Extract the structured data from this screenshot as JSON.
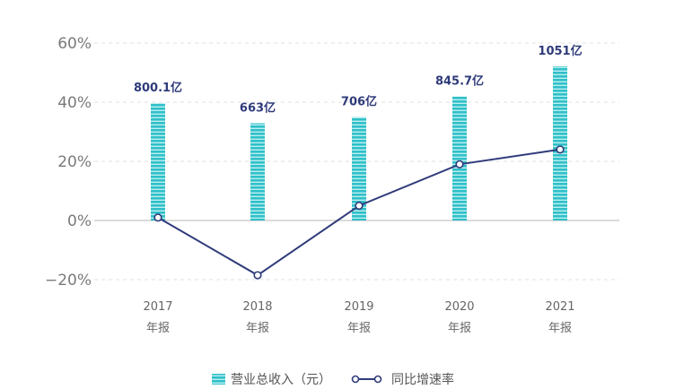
{
  "chart_data": {
    "type": "bar+line",
    "title": "",
    "categories": [
      {
        "year": "2017",
        "period": "年报"
      },
      {
        "year": "2018",
        "period": "年报"
      },
      {
        "year": "2019",
        "period": "年报"
      },
      {
        "year": "2020",
        "period": "年报"
      },
      {
        "year": "2021",
        "period": "年报"
      }
    ],
    "series": [
      {
        "name": "营业总收入（元）",
        "type": "bar",
        "values_yi": [
          800.1,
          663,
          706,
          845.7,
          1051
        ],
        "labels": [
          "800.1亿",
          "663亿",
          "706亿",
          "845.7亿",
          "1051亿"
        ],
        "color": "#3cc4cc"
      },
      {
        "name": "同比增速率",
        "type": "line",
        "values_pct": [
          1,
          -18.5,
          5,
          19,
          24
        ],
        "color": "#2f3b7a"
      }
    ],
    "y_axis": {
      "ticks": [
        60,
        40,
        20,
        0,
        -20
      ],
      "tick_labels": [
        "60%",
        "40%",
        "20%",
        "0%",
        "−20%"
      ],
      "range": [
        -20,
        60
      ],
      "grid": "dashed"
    },
    "legend": {
      "placement": "bottom-center",
      "items": [
        "营业总收入（元）",
        "同比增速率"
      ]
    }
  }
}
